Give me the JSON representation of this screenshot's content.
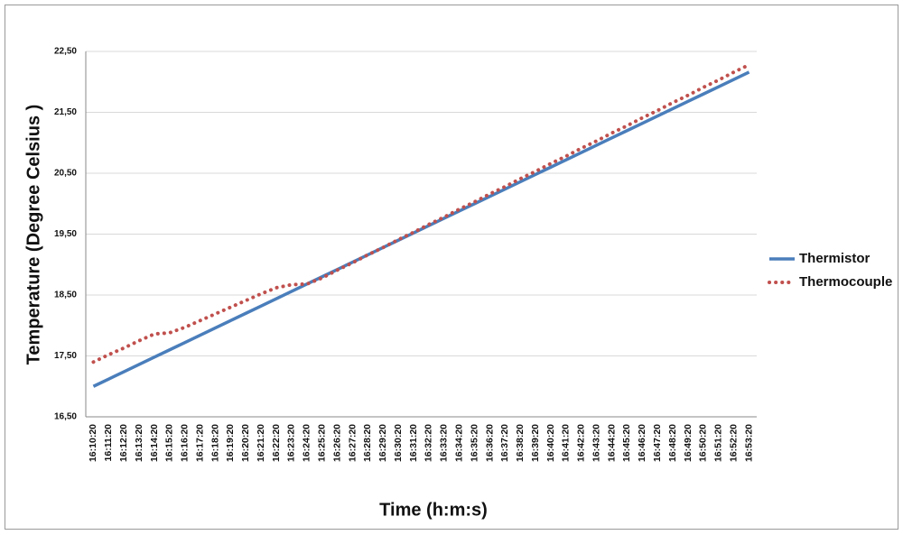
{
  "chart_data": {
    "type": "line",
    "x_label": "Time  (h:m:s)",
    "y_label": "Temperature  (Degree   Celsius )",
    "categories": [
      "16:10:20",
      "16:11:20",
      "16:12:20",
      "16:13:20",
      "16:14:20",
      "16:15:20",
      "16:16:20",
      "16:17:20",
      "16:18:20",
      "16:19:20",
      "16:20:20",
      "16:21:20",
      "16:22:20",
      "16:23:20",
      "16:24:20",
      "16:25:20",
      "16:26:20",
      "16:27:20",
      "16:28:20",
      "16:29:20",
      "16:30:20",
      "16:31:20",
      "16:32:20",
      "16:33:20",
      "16:34:20",
      "16:35:20",
      "16:36:20",
      "16:37:20",
      "16:38:20",
      "16:39:20",
      "16:40:20",
      "16:41:20",
      "16:42:20",
      "16:43:20",
      "16:44:20",
      "16:45:20",
      "16:46:20",
      "16:47:20",
      "16:48:20",
      "16:49:20",
      "16:50:20",
      "16:51:20",
      "16:52:20",
      "16:53:20"
    ],
    "series": [
      {
        "name": "Thermistor",
        "color": "#4a7ebb",
        "style": "solid",
        "values": [
          17.0,
          17.12,
          17.24,
          17.36,
          17.48,
          17.6,
          17.72,
          17.84,
          17.96,
          18.08,
          18.2,
          18.32,
          18.44,
          18.56,
          18.68,
          18.8,
          18.92,
          19.04,
          19.16,
          19.28,
          19.4,
          19.52,
          19.64,
          19.76,
          19.88,
          20.0,
          20.12,
          20.24,
          20.36,
          20.48,
          20.6,
          20.72,
          20.84,
          20.96,
          21.08,
          21.2,
          21.32,
          21.44,
          21.56,
          21.68,
          21.8,
          21.92,
          22.04,
          22.16
        ]
      },
      {
        "name": "Thermocouple",
        "color": "#c0504d",
        "style": "dotted",
        "values": [
          17.4,
          17.52,
          17.63,
          17.75,
          17.86,
          17.88,
          17.97,
          18.08,
          18.19,
          18.3,
          18.41,
          18.52,
          18.62,
          18.67,
          18.68,
          18.78,
          18.91,
          19.03,
          19.16,
          19.28,
          19.41,
          19.53,
          19.66,
          19.78,
          19.91,
          20.03,
          20.16,
          20.28,
          20.41,
          20.53,
          20.66,
          20.78,
          20.91,
          21.03,
          21.16,
          21.28,
          21.41,
          21.53,
          21.66,
          21.78,
          21.91,
          22.03,
          22.16,
          22.28
        ]
      }
    ],
    "ylim": [
      16.5,
      22.5
    ],
    "yticks": [
      {
        "value": 16.5,
        "label": "16,50"
      },
      {
        "value": 17.5,
        "label": "17,50"
      },
      {
        "value": 18.5,
        "label": "18,50"
      },
      {
        "value": 19.5,
        "label": "19,50"
      },
      {
        "value": 20.5,
        "label": "20,50"
      },
      {
        "value": 21.5,
        "label": "21,50"
      },
      {
        "value": 22.5,
        "label": "22,50"
      }
    ],
    "grid": true,
    "legend": "right"
  }
}
